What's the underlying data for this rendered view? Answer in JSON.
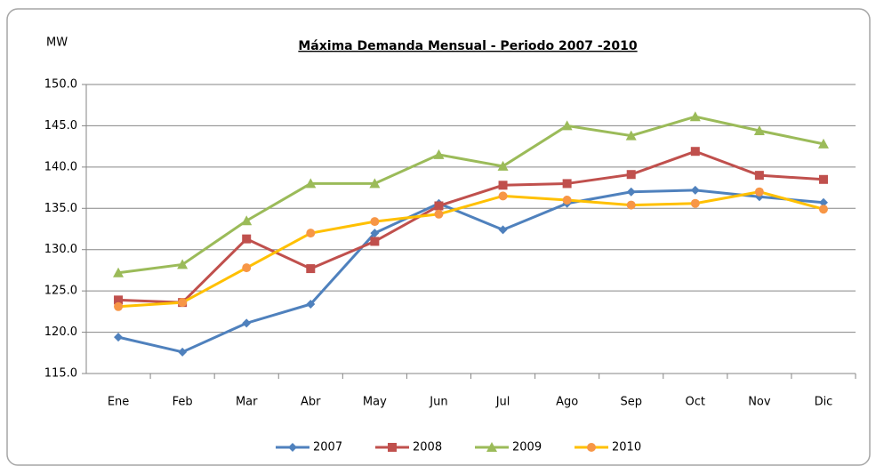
{
  "chart_data": {
    "type": "line",
    "title": "Máxima Demanda  Mensual  - Periodo  2007 -2010",
    "ylabel": "MW",
    "categories": [
      "Ene",
      "Feb",
      "Mar",
      "Abr",
      "May",
      "Jun",
      "Jul",
      "Ago",
      "Sep",
      "Oct",
      "Nov",
      "Dic"
    ],
    "series": [
      {
        "name": "2007",
        "color": "#4f81bd",
        "marker_color": "#4f81bd",
        "marker": "diamond",
        "values": [
          119.4,
          117.6,
          121.1,
          123.4,
          132.0,
          135.6,
          132.4,
          135.6,
          137.0,
          137.2,
          136.4,
          135.7
        ]
      },
      {
        "name": "2008",
        "color": "#c0504d",
        "marker_color": "#c0504d",
        "marker": "square",
        "values": [
          123.9,
          123.6,
          131.3,
          127.7,
          131.0,
          135.3,
          137.8,
          138.0,
          139.1,
          141.9,
          139.0,
          138.5
        ]
      },
      {
        "name": "2009",
        "color": "#9bbb59",
        "marker_color": "#9bbb59",
        "marker": "triangle",
        "values": [
          127.2,
          128.2,
          133.5,
          138.0,
          138.0,
          141.5,
          140.1,
          145.0,
          143.8,
          146.1,
          144.4,
          142.8
        ]
      },
      {
        "name": "2010",
        "color": "#ffc000",
        "marker_color": "#f79646",
        "marker": "circle",
        "values": [
          123.1,
          123.6,
          127.8,
          132.0,
          133.4,
          134.3,
          136.5,
          136.0,
          135.4,
          135.6,
          137.0,
          134.9
        ]
      }
    ],
    "ylim": [
      115,
      150
    ],
    "yticks": [
      {
        "value": 115,
        "label": "115.0"
      },
      {
        "value": 120,
        "label": "120.0"
      },
      {
        "value": 125,
        "label": "125.0"
      },
      {
        "value": 130,
        "label": "130.0"
      },
      {
        "value": 135,
        "label": "135.0"
      },
      {
        "value": 140,
        "label": "140.0"
      },
      {
        "value": 145,
        "label": "145.0"
      },
      {
        "value": 150,
        "label": "150.0"
      }
    ],
    "grid": true,
    "legend": "bottom"
  }
}
